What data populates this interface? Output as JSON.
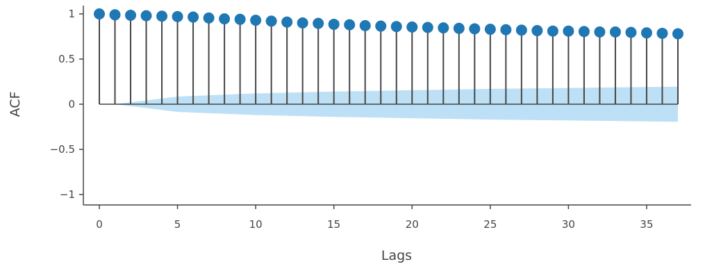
{
  "chart_data": {
    "type": "stem",
    "xlabel": "Lags",
    "ylabel": "ACF",
    "xlim": [
      0,
      37
    ],
    "ylim": [
      -1,
      1
    ],
    "x_ticks": [
      0,
      5,
      10,
      15,
      20,
      25,
      30,
      35
    ],
    "x_tick_labels": [
      "0",
      "5",
      "10",
      "15",
      "20",
      "25",
      "30",
      "35"
    ],
    "y_ticks": [
      1,
      0.5,
      0,
      -0.5,
      -1
    ],
    "y_tick_labels": [
      "1",
      "0.5",
      "0",
      "−0.5",
      "−1"
    ],
    "lags": [
      0,
      1,
      2,
      3,
      4,
      5,
      6,
      7,
      8,
      9,
      10,
      11,
      12,
      13,
      14,
      15,
      16,
      17,
      18,
      19,
      20,
      21,
      22,
      23,
      24,
      25,
      26,
      27,
      28,
      29,
      30,
      31,
      32,
      33,
      34,
      35,
      36,
      37
    ],
    "values": [
      1.0,
      0.99,
      0.985,
      0.98,
      0.975,
      0.97,
      0.965,
      0.955,
      0.945,
      0.94,
      0.93,
      0.92,
      0.91,
      0.9,
      0.895,
      0.885,
      0.88,
      0.87,
      0.865,
      0.86,
      0.855,
      0.85,
      0.845,
      0.84,
      0.835,
      0.83,
      0.825,
      0.82,
      0.815,
      0.81,
      0.81,
      0.805,
      0.8,
      0.8,
      0.795,
      0.79,
      0.785,
      0.78
    ],
    "confidence_band": {
      "lags": [
        0,
        1,
        5,
        10,
        15,
        20,
        25,
        30,
        35,
        37
      ],
      "upper": [
        0.0,
        0.0,
        0.085,
        0.12,
        0.14,
        0.155,
        0.17,
        0.18,
        0.19,
        0.195
      ],
      "lower": [
        0.0,
        0.0,
        -0.085,
        -0.12,
        -0.14,
        -0.155,
        -0.17,
        -0.18,
        -0.19,
        -0.195
      ]
    },
    "grid": false,
    "colors": {
      "marker": "#1f77b4",
      "stem": "#444444",
      "band": "#bde0f6",
      "axis": "#444444"
    }
  }
}
